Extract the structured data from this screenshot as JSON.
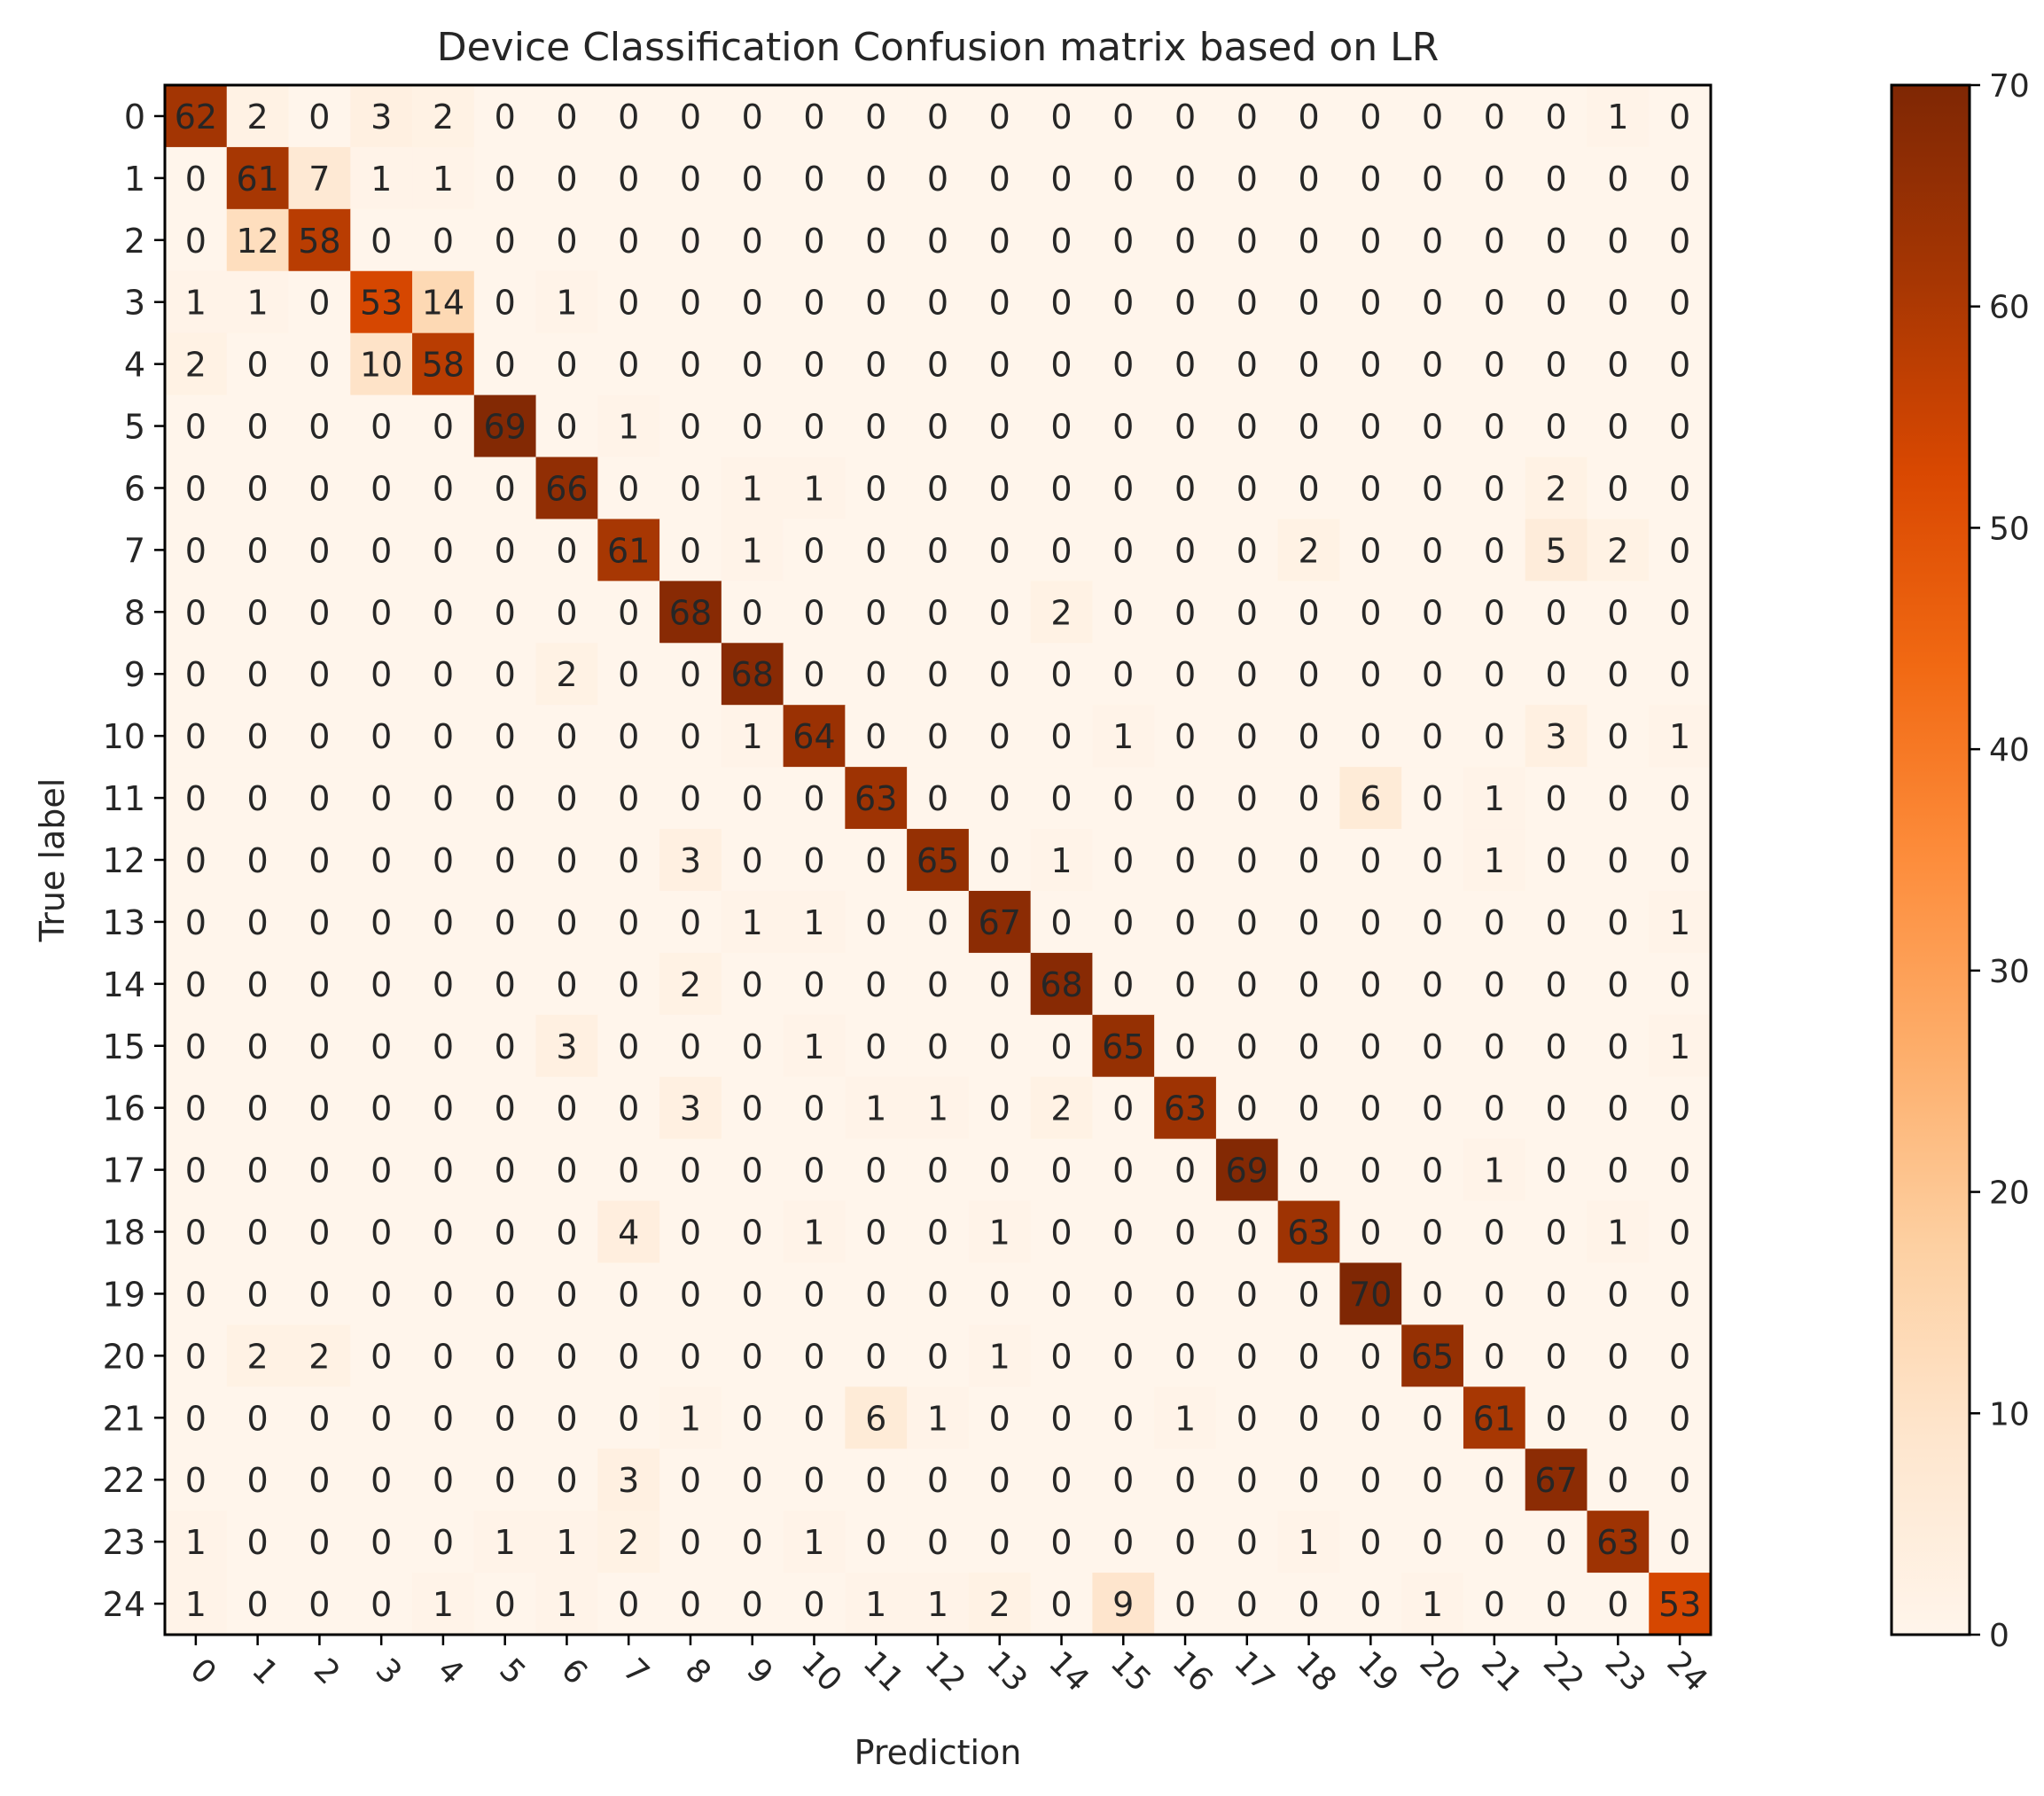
{
  "chart_data": {
    "type": "heatmap",
    "title": "Device Classification Confusion matrix based on LR",
    "xlabel": "Prediction",
    "ylabel": "True label",
    "x_categories": [
      "0",
      "1",
      "2",
      "3",
      "4",
      "5",
      "6",
      "7",
      "8",
      "9",
      "10",
      "11",
      "12",
      "13",
      "14",
      "15",
      "16",
      "17",
      "18",
      "19",
      "20",
      "21",
      "22",
      "23",
      "24"
    ],
    "y_categories": [
      "0",
      "1",
      "2",
      "3",
      "4",
      "5",
      "6",
      "7",
      "8",
      "9",
      "10",
      "11",
      "12",
      "13",
      "14",
      "15",
      "16",
      "17",
      "18",
      "19",
      "20",
      "21",
      "22",
      "23",
      "24"
    ],
    "matrix": [
      [
        62,
        2,
        0,
        3,
        2,
        0,
        0,
        0,
        0,
        0,
        0,
        0,
        0,
        0,
        0,
        0,
        0,
        0,
        0,
        0,
        0,
        0,
        0,
        1,
        0
      ],
      [
        0,
        61,
        7,
        1,
        1,
        0,
        0,
        0,
        0,
        0,
        0,
        0,
        0,
        0,
        0,
        0,
        0,
        0,
        0,
        0,
        0,
        0,
        0,
        0,
        0
      ],
      [
        0,
        12,
        58,
        0,
        0,
        0,
        0,
        0,
        0,
        0,
        0,
        0,
        0,
        0,
        0,
        0,
        0,
        0,
        0,
        0,
        0,
        0,
        0,
        0,
        0
      ],
      [
        1,
        1,
        0,
        53,
        14,
        0,
        1,
        0,
        0,
        0,
        0,
        0,
        0,
        0,
        0,
        0,
        0,
        0,
        0,
        0,
        0,
        0,
        0,
        0,
        0
      ],
      [
        2,
        0,
        0,
        10,
        58,
        0,
        0,
        0,
        0,
        0,
        0,
        0,
        0,
        0,
        0,
        0,
        0,
        0,
        0,
        0,
        0,
        0,
        0,
        0,
        0
      ],
      [
        0,
        0,
        0,
        0,
        0,
        69,
        0,
        1,
        0,
        0,
        0,
        0,
        0,
        0,
        0,
        0,
        0,
        0,
        0,
        0,
        0,
        0,
        0,
        0,
        0
      ],
      [
        0,
        0,
        0,
        0,
        0,
        0,
        66,
        0,
        0,
        1,
        1,
        0,
        0,
        0,
        0,
        0,
        0,
        0,
        0,
        0,
        0,
        0,
        2,
        0,
        0
      ],
      [
        0,
        0,
        0,
        0,
        0,
        0,
        0,
        61,
        0,
        1,
        0,
        0,
        0,
        0,
        0,
        0,
        0,
        0,
        2,
        0,
        0,
        0,
        5,
        2,
        0
      ],
      [
        0,
        0,
        0,
        0,
        0,
        0,
        0,
        0,
        68,
        0,
        0,
        0,
        0,
        0,
        2,
        0,
        0,
        0,
        0,
        0,
        0,
        0,
        0,
        0,
        0
      ],
      [
        0,
        0,
        0,
        0,
        0,
        0,
        2,
        0,
        0,
        68,
        0,
        0,
        0,
        0,
        0,
        0,
        0,
        0,
        0,
        0,
        0,
        0,
        0,
        0,
        0
      ],
      [
        0,
        0,
        0,
        0,
        0,
        0,
        0,
        0,
        0,
        1,
        64,
        0,
        0,
        0,
        0,
        1,
        0,
        0,
        0,
        0,
        0,
        0,
        3,
        0,
        1
      ],
      [
        0,
        0,
        0,
        0,
        0,
        0,
        0,
        0,
        0,
        0,
        0,
        63,
        0,
        0,
        0,
        0,
        0,
        0,
        0,
        6,
        0,
        1,
        0,
        0,
        0
      ],
      [
        0,
        0,
        0,
        0,
        0,
        0,
        0,
        0,
        3,
        0,
        0,
        0,
        65,
        0,
        1,
        0,
        0,
        0,
        0,
        0,
        0,
        1,
        0,
        0,
        0
      ],
      [
        0,
        0,
        0,
        0,
        0,
        0,
        0,
        0,
        0,
        1,
        1,
        0,
        0,
        67,
        0,
        0,
        0,
        0,
        0,
        0,
        0,
        0,
        0,
        0,
        1
      ],
      [
        0,
        0,
        0,
        0,
        0,
        0,
        0,
        0,
        2,
        0,
        0,
        0,
        0,
        0,
        68,
        0,
        0,
        0,
        0,
        0,
        0,
        0,
        0,
        0,
        0
      ],
      [
        0,
        0,
        0,
        0,
        0,
        0,
        3,
        0,
        0,
        0,
        1,
        0,
        0,
        0,
        0,
        65,
        0,
        0,
        0,
        0,
        0,
        0,
        0,
        0,
        1
      ],
      [
        0,
        0,
        0,
        0,
        0,
        0,
        0,
        0,
        3,
        0,
        0,
        1,
        1,
        0,
        2,
        0,
        63,
        0,
        0,
        0,
        0,
        0,
        0,
        0,
        0
      ],
      [
        0,
        0,
        0,
        0,
        0,
        0,
        0,
        0,
        0,
        0,
        0,
        0,
        0,
        0,
        0,
        0,
        0,
        69,
        0,
        0,
        0,
        1,
        0,
        0,
        0
      ],
      [
        0,
        0,
        0,
        0,
        0,
        0,
        0,
        4,
        0,
        0,
        1,
        0,
        0,
        1,
        0,
        0,
        0,
        0,
        63,
        0,
        0,
        0,
        0,
        1,
        0
      ],
      [
        0,
        0,
        0,
        0,
        0,
        0,
        0,
        0,
        0,
        0,
        0,
        0,
        0,
        0,
        0,
        0,
        0,
        0,
        0,
        70,
        0,
        0,
        0,
        0,
        0
      ],
      [
        0,
        2,
        2,
        0,
        0,
        0,
        0,
        0,
        0,
        0,
        0,
        0,
        0,
        1,
        0,
        0,
        0,
        0,
        0,
        0,
        65,
        0,
        0,
        0,
        0
      ],
      [
        0,
        0,
        0,
        0,
        0,
        0,
        0,
        0,
        1,
        0,
        0,
        6,
        1,
        0,
        0,
        0,
        1,
        0,
        0,
        0,
        0,
        61,
        0,
        0,
        0
      ],
      [
        0,
        0,
        0,
        0,
        0,
        0,
        0,
        3,
        0,
        0,
        0,
        0,
        0,
        0,
        0,
        0,
        0,
        0,
        0,
        0,
        0,
        0,
        67,
        0,
        0
      ],
      [
        1,
        0,
        0,
        0,
        0,
        1,
        1,
        2,
        0,
        0,
        1,
        0,
        0,
        0,
        0,
        0,
        0,
        0,
        1,
        0,
        0,
        0,
        0,
        63,
        0
      ],
      [
        1,
        0,
        0,
        0,
        1,
        0,
        1,
        0,
        0,
        0,
        0,
        1,
        1,
        2,
        0,
        9,
        0,
        0,
        0,
        0,
        1,
        0,
        0,
        0,
        53
      ]
    ],
    "colormap": "Oranges",
    "color_stops": [
      "#fff5eb",
      "#fee6ce",
      "#fdd0a2",
      "#fdae6b",
      "#fd8d3c",
      "#f16913",
      "#d94801",
      "#a63603",
      "#7f2704"
    ],
    "value_range": [
      0,
      70
    ],
    "colorbar_ticks": [
      0,
      10,
      20,
      30,
      40,
      50,
      60,
      70
    ],
    "colorbar_tick_labels": [
      "0",
      "10",
      "20",
      "30",
      "40",
      "50",
      "60",
      "70"
    ],
    "colorbar_placement": "right",
    "text_color": "#262626",
    "frame_color": "#000000"
  }
}
